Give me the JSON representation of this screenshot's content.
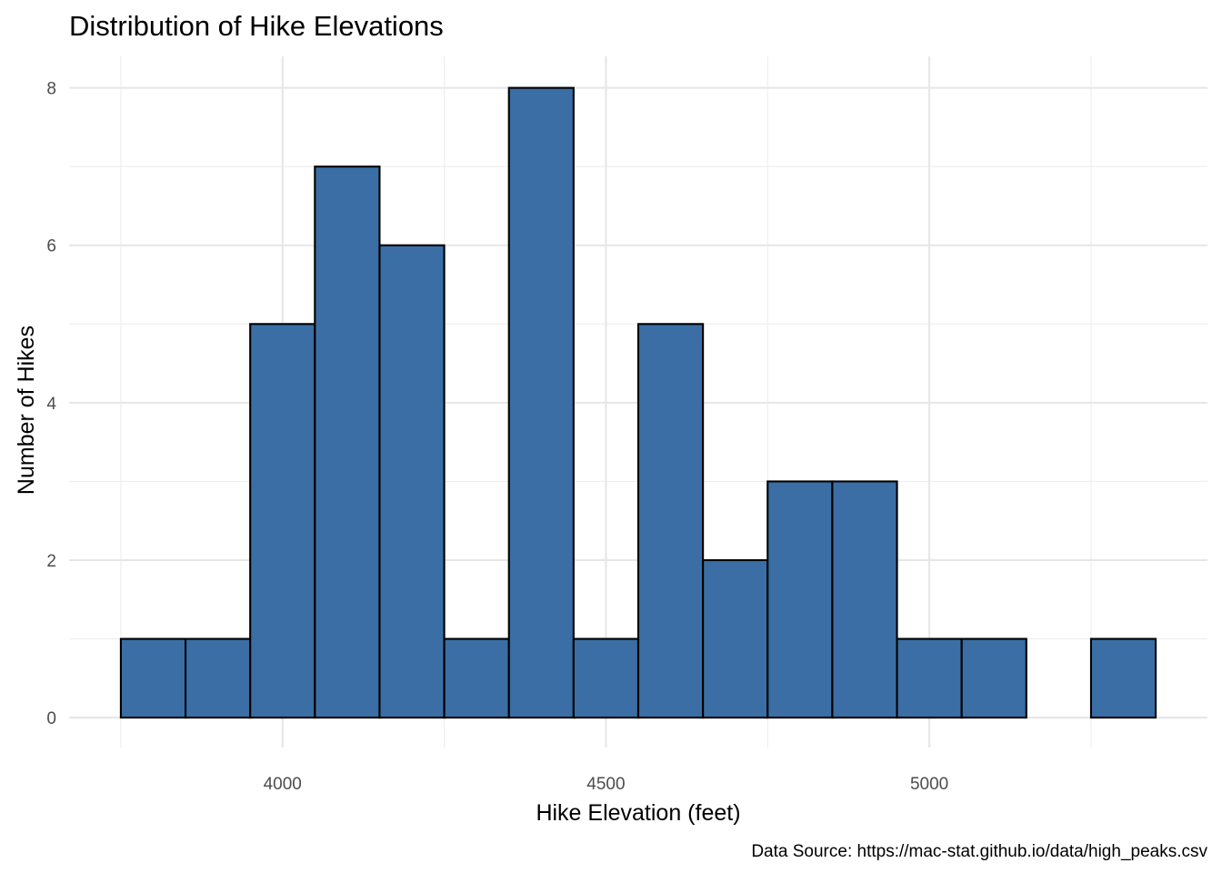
{
  "chart_data": {
    "type": "bar",
    "subtype": "histogram",
    "title": "Distribution of Hike Elevations",
    "xlabel": "Hike Elevation (feet)",
    "ylabel": "Number of Hikes",
    "caption": "Data Source: https://mac-stat.github.io/data/high_peaks.csv",
    "bin_width": 100,
    "bins": [
      {
        "x0": 3750,
        "x1": 3850,
        "count": 1
      },
      {
        "x0": 3850,
        "x1": 3950,
        "count": 1
      },
      {
        "x0": 3950,
        "x1": 4050,
        "count": 5
      },
      {
        "x0": 4050,
        "x1": 4150,
        "count": 7
      },
      {
        "x0": 4150,
        "x1": 4250,
        "count": 6
      },
      {
        "x0": 4250,
        "x1": 4350,
        "count": 1
      },
      {
        "x0": 4350,
        "x1": 4450,
        "count": 8
      },
      {
        "x0": 4450,
        "x1": 4550,
        "count": 1
      },
      {
        "x0": 4550,
        "x1": 4650,
        "count": 5
      },
      {
        "x0": 4650,
        "x1": 4750,
        "count": 2
      },
      {
        "x0": 4750,
        "x1": 4850,
        "count": 3
      },
      {
        "x0": 4850,
        "x1": 4950,
        "count": 3
      },
      {
        "x0": 4950,
        "x1": 5050,
        "count": 1
      },
      {
        "x0": 5050,
        "x1": 5150,
        "count": 1
      },
      {
        "x0": 5150,
        "x1": 5250,
        "count": 0
      },
      {
        "x0": 5250,
        "x1": 5350,
        "count": 1
      }
    ],
    "xlim": [
      3670,
      5430
    ],
    "ylim": [
      -0.38,
      8.4
    ],
    "x_ticks": [
      4000,
      4500,
      5000
    ],
    "x_minor_ticks": [
      3750,
      4250,
      4750,
      5250
    ],
    "y_ticks": [
      0,
      2,
      4,
      6,
      8
    ],
    "y_minor_ticks": [
      1,
      3,
      5,
      7
    ],
    "grid": true,
    "legend": "none",
    "colors": {
      "bar_fill": "#3A6EA5",
      "bar_outline": "#000000",
      "grid": "#E6E6E6",
      "tick_text": "#4D4D4D"
    }
  }
}
